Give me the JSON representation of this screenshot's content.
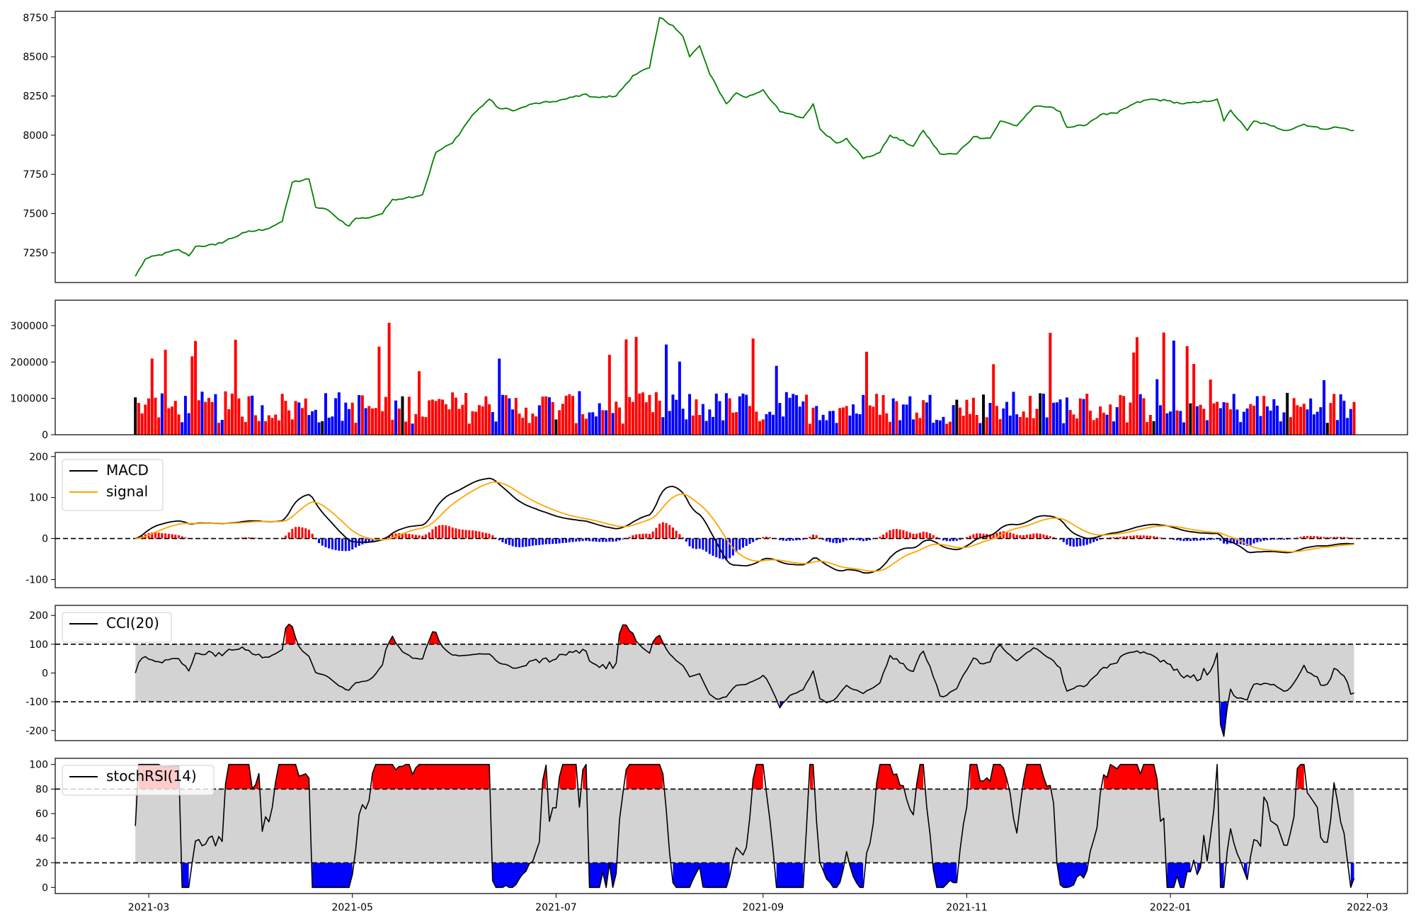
{
  "colors": {
    "price": "#008000",
    "up": "#ff0000",
    "down": "#0000ff",
    "flat": "#000000",
    "macd": "#000000",
    "signal": "#ffa500",
    "band": "#d3d3d3",
    "frame": "#000000"
  },
  "chart_data": [
    {
      "id": "price",
      "type": "line",
      "series": [
        {
          "name": "",
          "key": "close"
        }
      ],
      "ylim": [
        7060,
        8790
      ],
      "yticks": [
        7250,
        7500,
        7750,
        8000,
        8250,
        8500,
        8750
      ],
      "ytick_labels": [
        "7250",
        "7500",
        "7750",
        "8000",
        "8250",
        "8500",
        "8750"
      ],
      "shared_x_axis": true
    },
    {
      "id": "volume",
      "type": "bar",
      "ylim": [
        0,
        370000
      ],
      "yticks": [
        0,
        100000,
        200000,
        300000
      ],
      "ytick_labels": [
        "0",
        "100000",
        "200000",
        "300000"
      ],
      "bar_color_rule": "red when close rises, blue when close falls, black when unchanged"
    },
    {
      "id": "macd",
      "type": "line",
      "series": [
        {
          "name": "MACD",
          "key": "macd"
        },
        {
          "name": "signal",
          "key": "signal"
        }
      ],
      "histogram": "macd minus signal",
      "ylim": [
        -120,
        210
      ],
      "yticks": [
        -100,
        0,
        100,
        200
      ],
      "ytick_labels": [
        "-100",
        "0",
        "100",
        "200"
      ],
      "reference_lines": [
        0
      ],
      "legend": "upper-left"
    },
    {
      "id": "cci",
      "type": "line",
      "series": [
        {
          "name": "CCI(20)",
          "key": "cci"
        }
      ],
      "ylim": [
        -235,
        235
      ],
      "yticks": [
        -200,
        -100,
        0,
        100,
        200
      ],
      "ytick_labels": [
        "-200",
        "-100",
        "0",
        "100",
        "200"
      ],
      "band": [
        -100,
        100
      ],
      "reference_lines": [
        100,
        -100
      ],
      "legend": "upper-left"
    },
    {
      "id": "stochrsi",
      "type": "line",
      "series": [
        {
          "name": "stochRSI(14)",
          "key": "stochrsi"
        }
      ],
      "ylim": [
        -5,
        105
      ],
      "yticks": [
        0,
        20,
        40,
        60,
        80,
        100
      ],
      "ytick_labels": [
        "0",
        "20",
        "40",
        "60",
        "80",
        "100"
      ],
      "band": [
        20,
        80
      ],
      "reference_lines": [
        80,
        20
      ],
      "legend": "upper-left"
    }
  ],
  "x_axis": {
    "range": [
      "2021-02-01",
      "2022-03-13"
    ],
    "data_range": [
      "2021-02-25",
      "2022-02-25"
    ],
    "ticks": [
      "2021-03-01",
      "2021-05-01",
      "2021-07-01",
      "2021-09-01",
      "2021-11-01",
      "2022-01-01",
      "2022-03-01"
    ],
    "tick_labels": [
      "2021-03",
      "2021-05",
      "2021-07",
      "2021-09",
      "2021-11",
      "2022-01",
      "2022-03"
    ]
  },
  "price_anchors": [
    [
      "2021-02-25",
      7100
    ],
    [
      "2021-02-28",
      7210
    ],
    [
      "2021-03-10",
      7270
    ],
    [
      "2021-03-13",
      7230
    ],
    [
      "2021-03-15",
      7290
    ],
    [
      "2021-03-21",
      7300
    ],
    [
      "2021-03-30",
      7380
    ],
    [
      "2021-04-05",
      7400
    ],
    [
      "2021-04-10",
      7450
    ],
    [
      "2021-04-13",
      7700
    ],
    [
      "2021-04-18",
      7720
    ],
    [
      "2021-04-20",
      7540
    ],
    [
      "2021-04-23",
      7530
    ],
    [
      "2021-04-26",
      7480
    ],
    [
      "2021-04-30",
      7420
    ],
    [
      "2021-05-02",
      7470
    ],
    [
      "2021-05-05",
      7470
    ],
    [
      "2021-05-10",
      7500
    ],
    [
      "2021-05-13",
      7590
    ],
    [
      "2021-05-17",
      7600
    ],
    [
      "2021-05-22",
      7620
    ],
    [
      "2021-05-26",
      7890
    ],
    [
      "2021-05-31",
      7950
    ],
    [
      "2021-06-03",
      8040
    ],
    [
      "2021-06-06",
      8130
    ],
    [
      "2021-06-11",
      8230
    ],
    [
      "2021-06-14",
      8170
    ],
    [
      "2021-06-19",
      8160
    ],
    [
      "2021-06-24",
      8200
    ],
    [
      "2021-06-29",
      8210
    ],
    [
      "2021-07-04",
      8230
    ],
    [
      "2021-07-09",
      8260
    ],
    [
      "2021-07-14",
      8240
    ],
    [
      "2021-07-19",
      8250
    ],
    [
      "2021-07-24",
      8380
    ],
    [
      "2021-07-29",
      8430
    ],
    [
      "2021-08-01",
      8750
    ],
    [
      "2021-08-05",
      8700
    ],
    [
      "2021-08-08",
      8630
    ],
    [
      "2021-08-10",
      8500
    ],
    [
      "2021-08-13",
      8570
    ],
    [
      "2021-08-16",
      8390
    ],
    [
      "2021-08-21",
      8200
    ],
    [
      "2021-08-24",
      8270
    ],
    [
      "2021-08-27",
      8240
    ],
    [
      "2021-09-01",
      8290
    ],
    [
      "2021-09-06",
      8150
    ],
    [
      "2021-09-13",
      8110
    ],
    [
      "2021-09-16",
      8200
    ],
    [
      "2021-09-18",
      8040
    ],
    [
      "2021-09-23",
      7950
    ],
    [
      "2021-09-26",
      7980
    ],
    [
      "2021-10-01",
      7850
    ],
    [
      "2021-10-06",
      7890
    ],
    [
      "2021-10-09",
      8000
    ],
    [
      "2021-10-16",
      7930
    ],
    [
      "2021-10-19",
      8030
    ],
    [
      "2021-10-24",
      7880
    ],
    [
      "2021-10-29",
      7880
    ],
    [
      "2021-11-03",
      7990
    ],
    [
      "2021-11-08",
      7980
    ],
    [
      "2021-11-11",
      8090
    ],
    [
      "2021-11-16",
      8060
    ],
    [
      "2021-11-21",
      8180
    ],
    [
      "2021-11-26",
      8180
    ],
    [
      "2021-11-29",
      8150
    ],
    [
      "2021-12-01",
      8050
    ],
    [
      "2021-12-06",
      8060
    ],
    [
      "2021-12-11",
      8130
    ],
    [
      "2021-12-16",
      8140
    ],
    [
      "2021-12-21",
      8200
    ],
    [
      "2021-12-26",
      8230
    ],
    [
      "2021-12-31",
      8220
    ],
    [
      "2022-01-05",
      8200
    ],
    [
      "2022-01-10",
      8210
    ],
    [
      "2022-01-15",
      8230
    ],
    [
      "2022-01-17",
      8090
    ],
    [
      "2022-01-19",
      8160
    ],
    [
      "2022-01-24",
      8030
    ],
    [
      "2022-01-26",
      8090
    ],
    [
      "2022-01-31",
      8060
    ],
    [
      "2022-02-05",
      8030
    ],
    [
      "2022-02-10",
      8070
    ],
    [
      "2022-02-15",
      8040
    ],
    [
      "2022-02-20",
      8050
    ],
    [
      "2022-02-25",
      8030
    ]
  ]
}
